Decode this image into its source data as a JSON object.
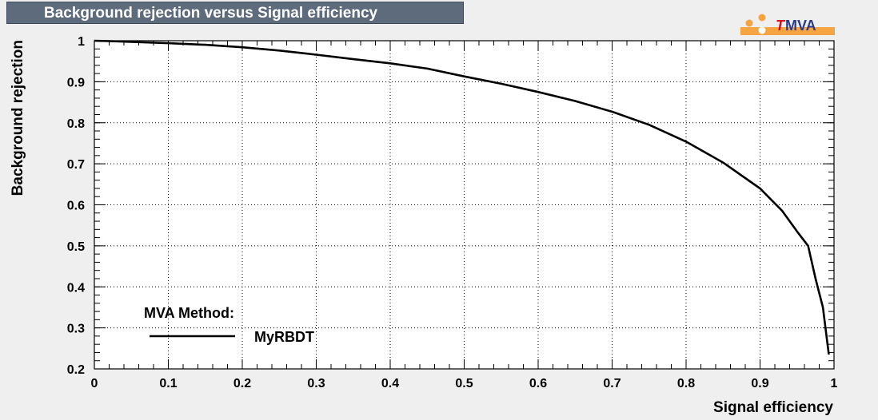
{
  "logo": {
    "icon": "tmva-logo",
    "text_t": "T",
    "text_rest": "MVA",
    "colors": {
      "orange": "#f5a441",
      "red": "#d6101b",
      "blue": "#2c3a8a"
    }
  },
  "chart_data": {
    "type": "line",
    "title": "Background rejection versus Signal efficiency",
    "xlabel": "Signal efficiency",
    "ylabel": "Background rejection",
    "xlim": [
      0,
      1
    ],
    "ylim": [
      0.2,
      1
    ],
    "xticks": [
      "0",
      "0.1",
      "0.2",
      "0.3",
      "0.4",
      "0.5",
      "0.6",
      "0.7",
      "0.8",
      "0.9",
      "1"
    ],
    "yticks": [
      "0.2",
      "0.3",
      "0.4",
      "0.5",
      "0.6",
      "0.7",
      "0.8",
      "0.9",
      "1"
    ],
    "grid": true,
    "legend": {
      "title": "MVA Method:",
      "placement": "bottom-left"
    },
    "series": [
      {
        "name": "MyRBDT",
        "color": "#000000",
        "x": [
          0.0,
          0.02,
          0.05,
          0.1,
          0.15,
          0.2,
          0.25,
          0.3,
          0.35,
          0.4,
          0.45,
          0.5,
          0.55,
          0.6,
          0.65,
          0.7,
          0.75,
          0.8,
          0.85,
          0.9,
          0.93,
          0.95,
          0.965,
          0.975,
          0.985,
          0.993
        ],
        "y": [
          1.0,
          0.999,
          0.997,
          0.994,
          0.99,
          0.984,
          0.976,
          0.966,
          0.955,
          0.945,
          0.932,
          0.913,
          0.895,
          0.875,
          0.853,
          0.827,
          0.795,
          0.754,
          0.703,
          0.64,
          0.585,
          0.535,
          0.5,
          0.42,
          0.35,
          0.235
        ]
      }
    ]
  }
}
